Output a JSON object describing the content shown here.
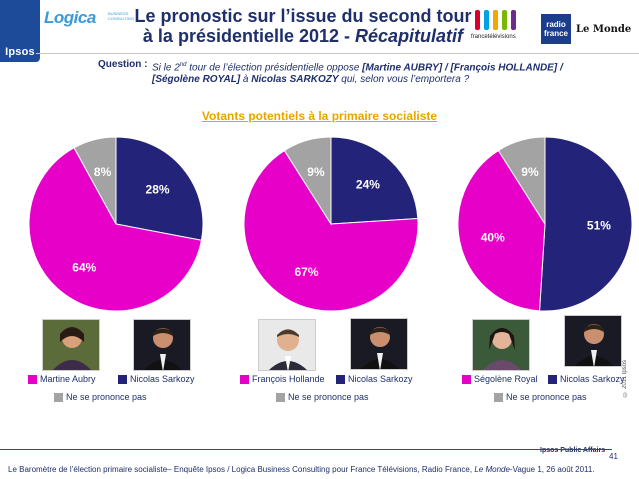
{
  "header": {
    "ipsos_logo": "Ipsos",
    "logica_logo": "Logica",
    "logica_sub": "BUSINESS CONSULTING",
    "title_line1": "Le pronostic sur l’issue du second tour",
    "title_line2_a": "à la présidentielle 2012 - ",
    "title_line2_b": "Récapitulatif",
    "ftv_logo": "francetélévisions",
    "radiofrance_l1": "radio",
    "radiofrance_l2": "france",
    "lemonde_logo": "Le Monde"
  },
  "question": {
    "label": "Question :",
    "t1": "Si le 2",
    "sup": "nd",
    "t2": " tour de l’élection présidentielle oppose ",
    "b1": "[Martine AUBRY] / [François HOLLANDE] /",
    "b2": "[Ségolène ROYAL]",
    "t3": " à ",
    "b3": "Nicolas SARKOZY",
    "t4": " qui, selon vous l’emportera ?"
  },
  "subtitle": "Votants potentiels à la primaire socialiste",
  "colors": {
    "ps": "#e600c8",
    "sarkozy": "#23237a",
    "nsp": "#a3a3a3"
  },
  "chart_data": [
    {
      "type": "pie",
      "title": "Martine Aubry vs Nicolas Sarkozy",
      "slices": [
        {
          "name": "Nicolas Sarkozy",
          "value": 28,
          "label": "28%"
        },
        {
          "name": "Martine Aubry",
          "value": 64,
          "label": "64%"
        },
        {
          "name": "Ne se prononce pas",
          "value": 8,
          "label": "8%"
        }
      ],
      "legend": [
        "Martine Aubry",
        "Nicolas Sarkozy",
        "Ne se prononce pas"
      ]
    },
    {
      "type": "pie",
      "title": "François Hollande vs Nicolas Sarkozy",
      "slices": [
        {
          "name": "Nicolas Sarkozy",
          "value": 24,
          "label": "24%"
        },
        {
          "name": "François Hollande",
          "value": 67,
          "label": "67%"
        },
        {
          "name": "Ne se prononce pas",
          "value": 9,
          "label": "9%"
        }
      ],
      "legend": [
        "François Hollande",
        "Nicolas Sarkozy",
        "Ne se prononce pas"
      ]
    },
    {
      "type": "pie",
      "title": "Ségolène Royal vs Nicolas Sarkozy",
      "slices": [
        {
          "name": "Nicolas Sarkozy",
          "value": 51,
          "label": "51%"
        },
        {
          "name": "Ségolène Royal",
          "value": 40,
          "label": "40%"
        },
        {
          "name": "Ne se prononce pas",
          "value": 9,
          "label": "9%"
        }
      ],
      "legend": [
        "Ségolène Royal",
        "Nicolas Sarkozy",
        "Ne se prononce pas"
      ]
    }
  ],
  "copyright": "© 2011 Ipsos",
  "footer": {
    "brand": "Ipsos Public Affairs",
    "page": "41",
    "t1": "Le Baromètre de l’élection primaire socialiste– Enquête Ipsos / Logica Business Consulting pour France Télévisions, Radio France, ",
    "t2": "Le Monde",
    "t3": "-Vague 1, 26 août 2011."
  }
}
